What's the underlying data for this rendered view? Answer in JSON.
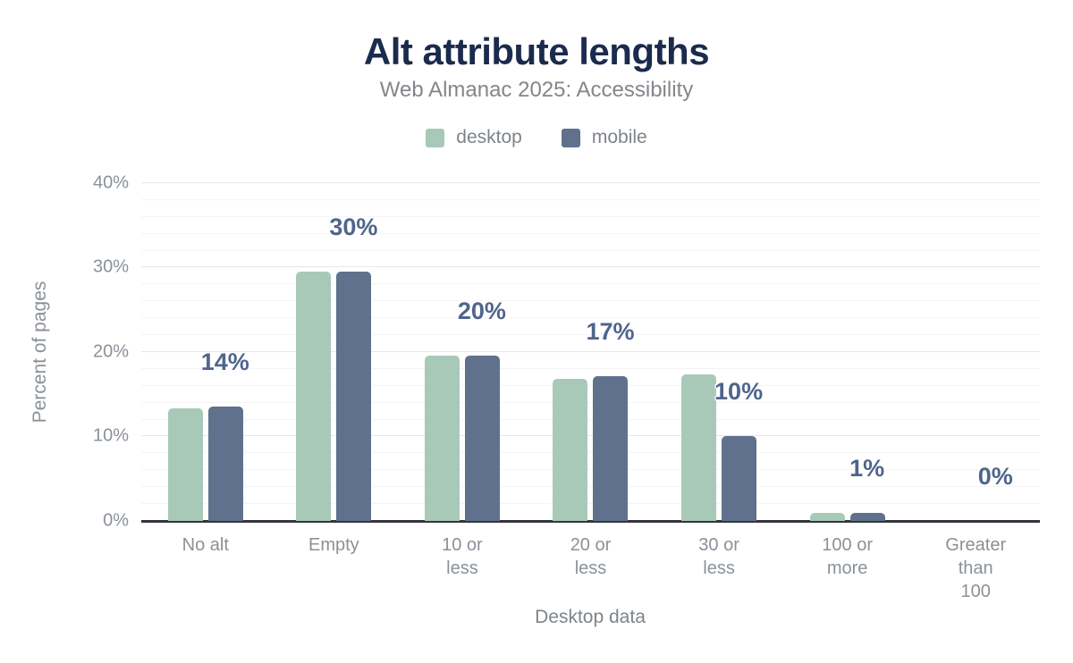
{
  "chart_data": {
    "type": "bar",
    "title": "Alt attribute lengths",
    "subtitle": "Web Almanac 2025: Accessibility",
    "xlabel": "Desktop data",
    "ylabel": "Percent of pages",
    "categories": [
      "No alt",
      "Empty",
      "10 or less",
      "20 or less",
      "30 or less",
      "100 or more",
      "Greater than 100"
    ],
    "xtick_lines": [
      [
        "No alt"
      ],
      [
        "Empty"
      ],
      [
        "10 or less"
      ],
      [
        "20 or less"
      ],
      [
        "30 or less"
      ],
      [
        "100 or",
        "more"
      ],
      [
        "Greater",
        "than 100"
      ]
    ],
    "series": [
      {
        "name": "desktop",
        "color": "#a9c9b8",
        "values": [
          13.3,
          29.5,
          19.6,
          16.8,
          17.4,
          1.0,
          0.0
        ]
      },
      {
        "name": "mobile",
        "color": "#5f718c",
        "values": [
          13.5,
          29.5,
          19.6,
          17.1,
          10.0,
          1.0,
          0.0
        ]
      }
    ],
    "bar_labels": [
      "14%",
      "30%",
      "20%",
      "17%",
      "10%",
      "1%",
      "0%"
    ],
    "ylim": [
      0,
      40
    ],
    "yticks": [
      0,
      10,
      20,
      30,
      40
    ],
    "ytick_labels": [
      "0%",
      "10%",
      "20%",
      "30%",
      "40%"
    ],
    "minor_grid_step": 2,
    "grid": "on",
    "legend_position": "top"
  },
  "colors": {
    "title": "#1b2b4d",
    "subtitle": "#85868b",
    "axis_text": "#8b9199",
    "data_label": "#4f658c",
    "grid_major": "#e7e7e7",
    "grid_minor": "#f4f4f4",
    "axis_line": "#32353c",
    "desktop": "#a9c9b8",
    "mobile": "#5f718c",
    "background": "#ffffff"
  }
}
